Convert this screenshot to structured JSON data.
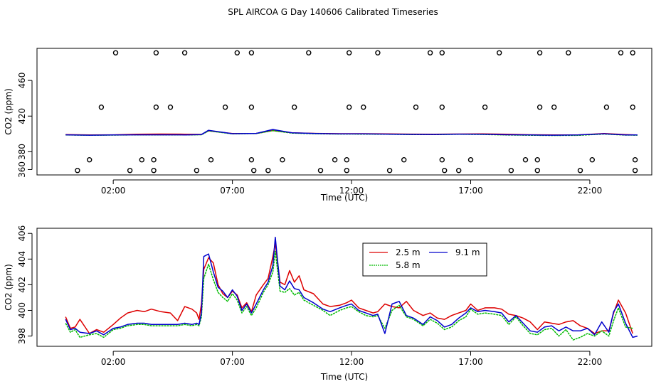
{
  "page": {
    "title": "SPL AIRCOA G  Day 140606  Calibrated Timeseries"
  },
  "colors": {
    "red": "#dd0000",
    "green": "#00bb00",
    "blue": "#0000cc",
    "axis": "#000000"
  },
  "chart_data": [
    {
      "type": "scatter",
      "title": "SPL AIRCOA G  Day 140606  Calibrated Timeseries",
      "xlabel": "Time (UTC)",
      "ylabel": "CO2 (ppm)",
      "x_unit": "hours UTC",
      "xlim": [
        -1.2,
        24.6
      ],
      "ylim": [
        354,
        496
      ],
      "x_ticks": [
        2,
        7,
        12,
        17,
        22
      ],
      "x_tick_labels": [
        "02:00",
        "07:00",
        "12:00",
        "17:00",
        "22:00"
      ],
      "y_ticks": [
        360,
        380,
        420,
        460
      ],
      "y_tick_labels": [
        "360",
        "380",
        "420",
        "460"
      ],
      "grid": false,
      "line_series": [
        {
          "color": "red",
          "x": [
            0.0,
            1.0,
            2.0,
            3.0,
            4.0,
            5.0,
            5.7,
            6.0,
            7.0,
            8.0,
            8.7,
            9.5,
            10.5,
            11.5,
            12.5,
            13.5,
            14.5,
            15.5,
            16.5,
            17.5,
            18.5,
            19.5,
            20.5,
            21.5,
            22.6,
            23.5,
            24.0
          ],
          "y": [
            399.2,
            398.9,
            399.0,
            399.6,
            399.9,
            399.7,
            399.5,
            403.5,
            400.4,
            400.6,
            403.8,
            401.2,
            400.6,
            400.3,
            400.3,
            400.0,
            399.8,
            399.7,
            399.9,
            400.0,
            399.6,
            399.1,
            398.9,
            398.9,
            400.4,
            399.2,
            398.8
          ]
        },
        {
          "color": "green",
          "x": [
            0.0,
            1.0,
            2.0,
            3.0,
            4.0,
            5.0,
            5.7,
            6.0,
            7.0,
            8.0,
            8.7,
            9.5,
            10.5,
            11.5,
            12.5,
            13.5,
            14.5,
            15.5,
            16.5,
            17.5,
            18.5,
            19.5,
            20.5,
            21.5,
            22.6,
            23.5,
            24.0
          ],
          "y": [
            398.8,
            398.5,
            398.7,
            398.9,
            398.9,
            398.8,
            399.1,
            403.4,
            400.1,
            400.4,
            403.6,
            400.9,
            400.2,
            399.9,
            399.8,
            399.6,
            399.3,
            399.2,
            399.6,
            399.4,
            398.8,
            398.5,
            398.3,
            398.4,
            399.9,
            398.7,
            398.6
          ]
        },
        {
          "color": "blue",
          "x": [
            0.0,
            1.0,
            2.0,
            3.0,
            4.0,
            5.0,
            5.7,
            6.0,
            7.0,
            8.0,
            8.7,
            9.5,
            10.5,
            11.5,
            12.5,
            13.5,
            14.5,
            15.5,
            16.5,
            17.5,
            18.5,
            19.5,
            20.5,
            21.5,
            22.6,
            23.5,
            24.0
          ],
          "y": [
            399.0,
            398.6,
            398.8,
            399.0,
            399.0,
            398.9,
            399.3,
            404.1,
            400.3,
            400.6,
            405.0,
            401.2,
            400.4,
            400.1,
            400.0,
            399.8,
            399.5,
            399.4,
            399.8,
            399.7,
            399.1,
            398.8,
            398.6,
            398.8,
            400.2,
            398.9,
            398.8
          ]
        }
      ],
      "points": [
        {
          "x": 0.5,
          "y": 359
        },
        {
          "x": 1.0,
          "y": 371
        },
        {
          "x": 1.5,
          "y": 430
        },
        {
          "x": 2.1,
          "y": 491
        },
        {
          "x": 2.7,
          "y": 359
        },
        {
          "x": 3.2,
          "y": 371
        },
        {
          "x": 3.7,
          "y": 371
        },
        {
          "x": 3.7,
          "y": 359
        },
        {
          "x": 3.8,
          "y": 430
        },
        {
          "x": 3.8,
          "y": 491
        },
        {
          "x": 4.4,
          "y": 430
        },
        {
          "x": 5.0,
          "y": 491
        },
        {
          "x": 5.5,
          "y": 359
        },
        {
          "x": 6.1,
          "y": 371
        },
        {
          "x": 6.7,
          "y": 430
        },
        {
          "x": 7.2,
          "y": 491
        },
        {
          "x": 7.8,
          "y": 491
        },
        {
          "x": 7.8,
          "y": 430
        },
        {
          "x": 7.8,
          "y": 371
        },
        {
          "x": 7.9,
          "y": 359
        },
        {
          "x": 8.5,
          "y": 359
        },
        {
          "x": 9.1,
          "y": 371
        },
        {
          "x": 9.6,
          "y": 430
        },
        {
          "x": 10.2,
          "y": 491
        },
        {
          "x": 10.7,
          "y": 359
        },
        {
          "x": 11.3,
          "y": 371
        },
        {
          "x": 11.8,
          "y": 371
        },
        {
          "x": 11.8,
          "y": 359
        },
        {
          "x": 11.9,
          "y": 430
        },
        {
          "x": 11.9,
          "y": 491
        },
        {
          "x": 12.5,
          "y": 430
        },
        {
          "x": 13.1,
          "y": 491
        },
        {
          "x": 13.6,
          "y": 359
        },
        {
          "x": 14.2,
          "y": 371
        },
        {
          "x": 14.7,
          "y": 430
        },
        {
          "x": 15.3,
          "y": 491
        },
        {
          "x": 15.8,
          "y": 491
        },
        {
          "x": 15.8,
          "y": 430
        },
        {
          "x": 15.8,
          "y": 371
        },
        {
          "x": 15.9,
          "y": 359
        },
        {
          "x": 16.5,
          "y": 359
        },
        {
          "x": 17.0,
          "y": 371
        },
        {
          "x": 17.6,
          "y": 430
        },
        {
          "x": 18.2,
          "y": 491
        },
        {
          "x": 18.7,
          "y": 359
        },
        {
          "x": 19.3,
          "y": 371
        },
        {
          "x": 19.8,
          "y": 371
        },
        {
          "x": 19.8,
          "y": 359
        },
        {
          "x": 19.9,
          "y": 430
        },
        {
          "x": 19.9,
          "y": 491
        },
        {
          "x": 20.5,
          "y": 430
        },
        {
          "x": 21.1,
          "y": 491
        },
        {
          "x": 21.6,
          "y": 359
        },
        {
          "x": 22.1,
          "y": 371
        },
        {
          "x": 22.7,
          "y": 430
        },
        {
          "x": 23.3,
          "y": 491
        },
        {
          "x": 23.8,
          "y": 491
        },
        {
          "x": 23.8,
          "y": 430
        },
        {
          "x": 23.9,
          "y": 371
        },
        {
          "x": 23.9,
          "y": 359
        }
      ]
    },
    {
      "type": "line",
      "xlabel": "Time (UTC)",
      "ylabel": "CO2 (ppm)",
      "x_unit": "hours UTC",
      "xlim": [
        -1.2,
        24.6
      ],
      "ylim": [
        397.2,
        406.4
      ],
      "x_ticks": [
        2,
        7,
        12,
        17,
        22
      ],
      "x_tick_labels": [
        "02:00",
        "07:00",
        "12:00",
        "17:00",
        "22:00"
      ],
      "y_ticks": [
        398,
        400,
        402,
        404,
        406
      ],
      "y_tick_labels": [
        "398",
        "400",
        "402",
        "404",
        "406"
      ],
      "grid": false,
      "legend": {
        "placement": "top-center",
        "entries": [
          {
            "label": "2.5 m",
            "color": "red"
          },
          {
            "label": "5.8 m",
            "color": "green"
          },
          {
            "label": "9.1 m",
            "color": "blue"
          }
        ]
      },
      "series": [
        {
          "name": "2.5 m",
          "color": "red",
          "x": [
            0.0,
            0.2,
            0.4,
            0.6,
            1.0,
            1.3,
            1.6,
            2.0,
            2.3,
            2.6,
            3.0,
            3.3,
            3.6,
            4.0,
            4.4,
            4.7,
            5.0,
            5.3,
            5.5,
            5.6,
            5.7,
            5.8,
            6.0,
            6.2,
            6.4,
            6.6,
            6.8,
            7.0,
            7.2,
            7.4,
            7.6,
            7.8,
            8.0,
            8.3,
            8.5,
            8.7,
            8.8,
            9.0,
            9.2,
            9.4,
            9.6,
            9.8,
            10.0,
            10.4,
            10.8,
            11.1,
            11.5,
            11.8,
            12.0,
            12.3,
            12.6,
            12.9,
            13.1,
            13.4,
            13.7,
            14.0,
            14.3,
            14.6,
            15.0,
            15.3,
            15.6,
            15.9,
            16.2,
            16.5,
            16.8,
            17.0,
            17.3,
            17.6,
            18.0,
            18.3,
            18.6,
            18.9,
            19.2,
            19.5,
            19.8,
            20.1,
            20.4,
            20.7,
            21.0,
            21.3,
            21.6,
            21.9,
            22.2,
            22.5,
            22.8,
            23.0,
            23.2,
            23.5,
            23.8
          ],
          "y": [
            399.5,
            398.6,
            398.7,
            399.3,
            398.2,
            398.5,
            398.3,
            398.9,
            399.4,
            399.8,
            400.0,
            399.9,
            400.1,
            399.9,
            399.8,
            399.2,
            400.3,
            400.1,
            399.8,
            399.3,
            400.5,
            403.2,
            404.1,
            403.7,
            402.0,
            401.3,
            401.0,
            401.5,
            401.2,
            400.2,
            400.6,
            399.9,
            401.2,
            402.0,
            402.5,
            404.2,
            405.2,
            402.2,
            402.0,
            403.1,
            402.2,
            402.7,
            401.6,
            401.3,
            400.5,
            400.3,
            400.4,
            400.6,
            400.8,
            400.2,
            400.0,
            399.8,
            399.9,
            400.5,
            400.3,
            400.2,
            400.7,
            400.0,
            399.6,
            399.8,
            399.4,
            399.3,
            399.6,
            399.8,
            400.0,
            400.5,
            400.0,
            400.2,
            400.2,
            400.1,
            399.7,
            399.6,
            399.4,
            399.1,
            398.5,
            399.1,
            399.0,
            398.9,
            399.1,
            399.2,
            398.8,
            398.6,
            398.2,
            398.4,
            398.4,
            399.8,
            400.8,
            399.8,
            398.2
          ]
        },
        {
          "name": "5.8 m",
          "color": "green",
          "x": [
            0.0,
            0.2,
            0.4,
            0.6,
            1.0,
            1.3,
            1.6,
            2.0,
            2.3,
            2.6,
            3.0,
            3.3,
            3.6,
            4.0,
            4.4,
            4.7,
            5.0,
            5.3,
            5.5,
            5.6,
            5.7,
            5.8,
            6.0,
            6.2,
            6.4,
            6.6,
            6.8,
            7.0,
            7.2,
            7.4,
            7.6,
            7.8,
            8.0,
            8.3,
            8.5,
            8.7,
            8.8,
            9.0,
            9.2,
            9.4,
            9.6,
            9.8,
            10.0,
            10.4,
            10.8,
            11.1,
            11.5,
            11.8,
            12.0,
            12.3,
            12.6,
            12.9,
            13.1,
            13.4,
            13.7,
            14.0,
            14.3,
            14.6,
            15.0,
            15.3,
            15.6,
            15.9,
            16.2,
            16.5,
            16.8,
            17.0,
            17.3,
            17.6,
            18.0,
            18.3,
            18.6,
            18.9,
            19.2,
            19.5,
            19.8,
            20.1,
            20.4,
            20.7,
            21.0,
            21.3,
            21.6,
            21.9,
            22.2,
            22.5,
            22.8,
            23.0,
            23.2,
            23.5,
            23.8
          ],
          "y": [
            399.0,
            398.3,
            398.5,
            397.9,
            398.1,
            398.2,
            397.9,
            398.5,
            398.6,
            398.8,
            398.9,
            398.9,
            398.8,
            398.8,
            398.8,
            398.8,
            398.9,
            398.8,
            398.9,
            398.8,
            399.5,
            402.5,
            403.6,
            402.4,
            401.4,
            401.0,
            400.7,
            401.3,
            400.8,
            399.8,
            400.3,
            399.6,
            400.2,
            401.4,
            402.0,
            403.0,
            404.6,
            401.5,
            401.4,
            401.7,
            401.2,
            401.4,
            400.8,
            400.4,
            400.0,
            399.6,
            400.0,
            400.2,
            400.3,
            399.9,
            399.6,
            399.5,
            399.6,
            398.6,
            400.0,
            400.4,
            399.5,
            399.3,
            398.8,
            399.3,
            399.0,
            398.5,
            398.7,
            399.2,
            399.5,
            400.1,
            399.7,
            399.8,
            399.7,
            399.6,
            398.9,
            399.5,
            398.8,
            398.2,
            398.1,
            398.5,
            398.6,
            398.0,
            398.5,
            397.7,
            397.9,
            398.2,
            398.0,
            398.4,
            398.0,
            399.2,
            400.2,
            398.7,
            398.6
          ]
        },
        {
          "name": "9.1 m",
          "color": "blue",
          "x": [
            0.0,
            0.2,
            0.4,
            0.6,
            1.0,
            1.3,
            1.6,
            2.0,
            2.3,
            2.6,
            3.0,
            3.3,
            3.6,
            4.0,
            4.4,
            4.7,
            5.0,
            5.3,
            5.5,
            5.6,
            5.7,
            5.8,
            6.0,
            6.2,
            6.4,
            6.6,
            6.8,
            7.0,
            7.2,
            7.4,
            7.6,
            7.8,
            8.0,
            8.3,
            8.5,
            8.7,
            8.8,
            9.0,
            9.2,
            9.4,
            9.6,
            9.8,
            10.0,
            10.4,
            10.8,
            11.1,
            11.5,
            11.8,
            12.0,
            12.3,
            12.6,
            12.9,
            13.1,
            13.4,
            13.7,
            14.0,
            14.3,
            14.6,
            15.0,
            15.3,
            15.6,
            15.9,
            16.2,
            16.5,
            16.8,
            17.0,
            17.3,
            17.6,
            18.0,
            18.3,
            18.6,
            18.9,
            19.2,
            19.5,
            19.8,
            20.1,
            20.4,
            20.7,
            21.0,
            21.3,
            21.6,
            21.9,
            22.2,
            22.5,
            22.8,
            23.0,
            23.2,
            23.5,
            23.8,
            24.0
          ],
          "y": [
            399.3,
            398.5,
            398.6,
            398.3,
            398.2,
            398.4,
            398.1,
            398.6,
            398.7,
            398.9,
            399.0,
            399.0,
            398.9,
            398.9,
            398.9,
            398.9,
            399.0,
            398.9,
            399.0,
            398.9,
            399.8,
            404.2,
            404.4,
            403.0,
            401.8,
            401.5,
            401.0,
            401.6,
            401.1,
            400.0,
            400.5,
            399.8,
            400.5,
            401.6,
            402.2,
            403.5,
            405.7,
            401.9,
            401.6,
            402.3,
            401.7,
            401.6,
            401.0,
            400.6,
            400.1,
            399.9,
            400.2,
            400.4,
            400.5,
            400.0,
            399.8,
            399.6,
            399.7,
            398.2,
            400.5,
            400.7,
            399.6,
            399.4,
            398.9,
            399.5,
            399.2,
            398.7,
            398.9,
            399.4,
            399.8,
            400.2,
            399.9,
            400.0,
            399.9,
            399.8,
            399.1,
            399.6,
            399.0,
            398.4,
            398.3,
            398.7,
            398.8,
            398.4,
            398.7,
            398.4,
            398.4,
            398.6,
            398.1,
            399.1,
            398.3,
            399.9,
            400.5,
            399.0,
            397.9,
            398.0
          ]
        }
      ]
    }
  ]
}
